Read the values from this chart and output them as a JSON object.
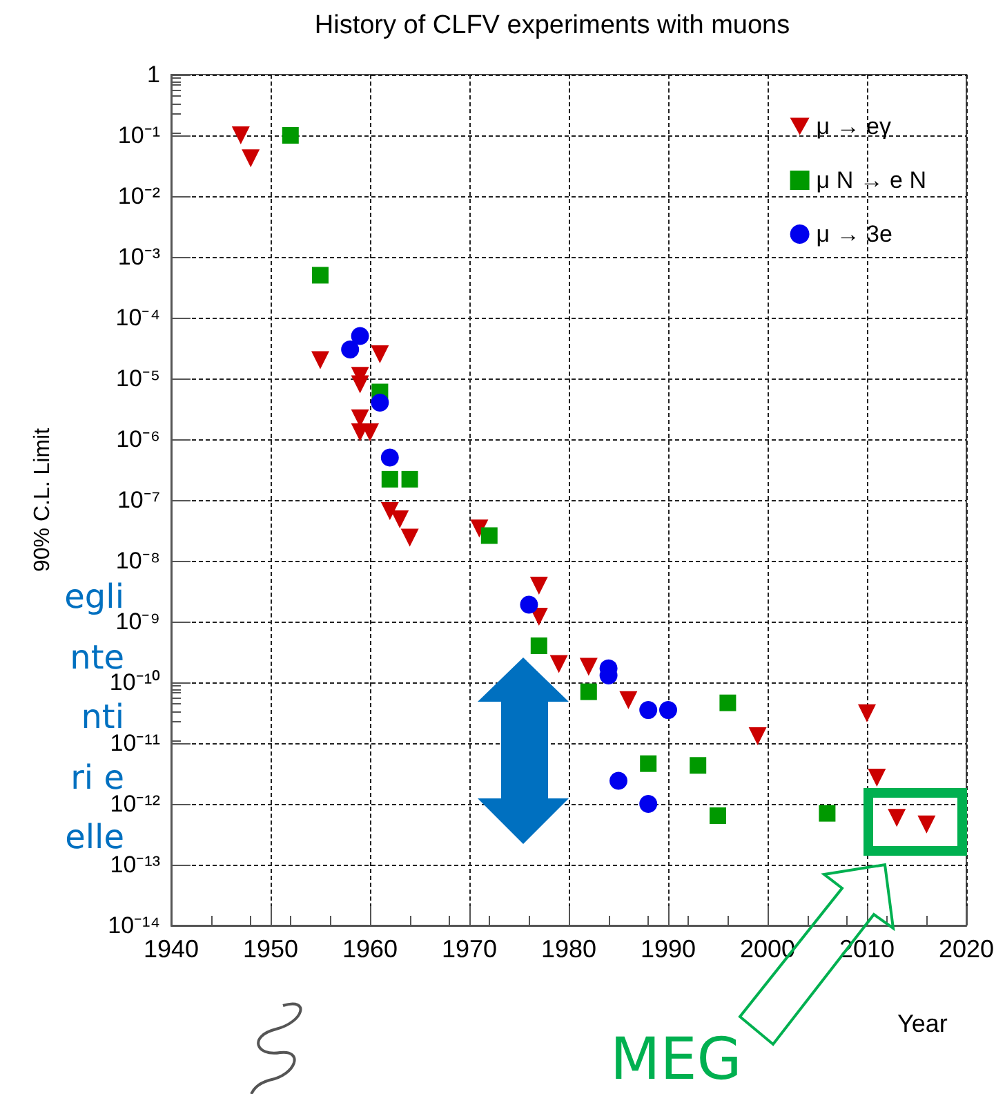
{
  "chart_data": {
    "type": "scatter",
    "title": "History of CLFV experiments with muons",
    "xlabel": "Year",
    "ylabel": "90% C.L. Limit",
    "annotations": [
      "egli",
      "nte",
      "nti",
      "ri e",
      "elle",
      "MEG"
    ],
    "log": "y",
    "grid": true,
    "legend": "top right",
    "xlim": [
      1940,
      2020
    ],
    "xticks": [
      1940,
      1950,
      1960,
      1970,
      1980,
      1990,
      2000,
      2010,
      2020
    ],
    "ylim": [
      1e-14,
      1
    ],
    "yticks": [
      {
        "value": 1e-14,
        "label": "10⁻¹⁴"
      },
      {
        "value": 1e-13,
        "label": "10⁻¹³"
      },
      {
        "value": 1e-12,
        "label": "10⁻¹²"
      },
      {
        "value": 1e-11,
        "label": "10⁻¹¹"
      },
      {
        "value": 1e-10,
        "label": "10⁻¹⁰"
      },
      {
        "value": 1e-09,
        "label": "10⁻⁹"
      },
      {
        "value": 1e-08,
        "label": "10⁻⁸"
      },
      {
        "value": 1e-07,
        "label": "10⁻⁷"
      },
      {
        "value": 1e-06,
        "label": "10⁻⁶"
      },
      {
        "value": 1e-05,
        "label": "10⁻⁵"
      },
      {
        "value": 0.0001,
        "label": "10⁻⁴"
      },
      {
        "value": 0.001,
        "label": "10⁻³"
      },
      {
        "value": 0.01,
        "label": "10⁻²"
      },
      {
        "value": 0.1,
        "label": "10⁻¹"
      },
      1
    ],
    "series": [
      {
        "name": "μ → eγ",
        "color": "#cc0000",
        "marker": "triangle",
        "x": [
          1947,
          1948,
          1955,
          1959,
          1959,
          1959,
          1959,
          1960,
          1961,
          1962,
          1963,
          1964,
          1971,
          1977,
          1977,
          1979,
          1982,
          1986,
          1999,
          2010,
          2011,
          2013,
          2016
        ],
        "values": [
          0.1,
          0.042,
          2e-05,
          1.1e-05,
          8e-06,
          2.2e-06,
          1.3e-06,
          1.3e-06,
          2.5e-05,
          6.6e-08,
          4.8e-08,
          2.4e-08,
          3.4e-08,
          3.9e-09,
          1.2e-09,
          2e-10,
          1.8e-10,
          5.1e-11,
          1.3e-11,
          3.1e-11,
          2.7e-12,
          5.9e-13,
          4.6e-13
        ]
      },
      {
        "name": "μ N → e N",
        "color": "#009900",
        "marker": "square",
        "x": [
          1952,
          1955,
          1961,
          1962,
          1964,
          1972,
          1977,
          1982,
          1988,
          1993,
          1995,
          1996,
          2006
        ],
        "values": [
          0.1,
          0.0005,
          6e-06,
          2.2e-07,
          2.2e-07,
          2.6e-08,
          4e-10,
          7e-11,
          4.6e-12,
          4.3e-12,
          6.4e-13,
          4.6e-11,
          7e-13
        ]
      },
      {
        "name": "μ → 3e",
        "color": "#0000ee",
        "marker": "circle",
        "x": [
          1958,
          1959,
          1961,
          1962,
          1976,
          1984,
          1984,
          1985,
          1988,
          1988,
          1990
        ],
        "values": [
          3e-05,
          5e-05,
          4e-06,
          5e-07,
          1.9e-09,
          1.7e-10,
          1.3e-10,
          2.4e-12,
          3.5e-11,
          1e-12,
          3.5e-11
        ]
      }
    ]
  }
}
